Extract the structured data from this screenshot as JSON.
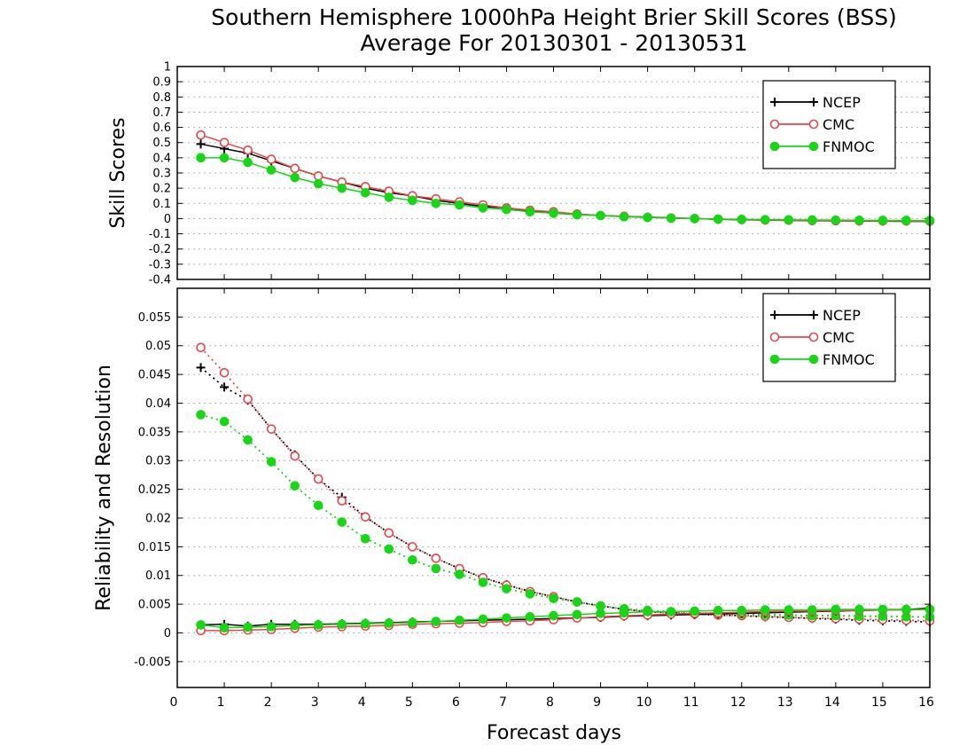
{
  "title_line1": "Southern Hemisphere 1000hPa Height Brier Skill Scores (BSS)",
  "title_line2": "Average For 20130301 - 20130531",
  "xlabel": "Forecast days",
  "colors": {
    "NCEP": "#000000",
    "CMC": "#e8454a",
    "FNMOC": "#16d616",
    "grid": "#b3b3b3"
  },
  "chart_data": [
    {
      "type": "line",
      "ylabel": "Skill Scores",
      "xlim": [
        0,
        16
      ],
      "ylim": [
        -0.4,
        1
      ],
      "xticks": [
        "0",
        "1",
        "2",
        "3",
        "4",
        "5",
        "6",
        "7",
        "8",
        "9",
        "10",
        "11",
        "12",
        "13",
        "14",
        "15",
        "16"
      ],
      "yticks": [
        "-0.4",
        "-0.3",
        "-0.2",
        "-0.1",
        "0",
        "0.1",
        "0.2",
        "0.3",
        "0.4",
        "0.5",
        "0.6",
        "0.7",
        "0.8",
        "0.9",
        "1"
      ],
      "grid": true,
      "legend_position": "top-right",
      "x": [
        0.5,
        1,
        1.5,
        2,
        2.5,
        3,
        3.5,
        4,
        4.5,
        5,
        5.5,
        6,
        6.5,
        7,
        7.5,
        8,
        8.5,
        9,
        9.5,
        10,
        10.5,
        11,
        11.5,
        12,
        12.5,
        13,
        13.5,
        14,
        14.5,
        15,
        15.5,
        16
      ],
      "series": [
        {
          "name": "NCEP",
          "marker": "plus",
          "values": [
            0.49,
            0.46,
            0.43,
            0.38,
            0.33,
            0.28,
            0.24,
            0.2,
            0.17,
            0.15,
            0.12,
            0.1,
            0.08,
            0.07,
            0.05,
            0.04,
            0.03,
            0.02,
            0.015,
            0.01,
            0.005,
            0.0,
            -0.005,
            -0.008,
            -0.01,
            -0.012,
            -0.014,
            -0.015,
            -0.016,
            -0.017,
            -0.018,
            -0.019
          ]
        },
        {
          "name": "CMC",
          "marker": "open-circle",
          "values": [
            0.55,
            0.5,
            0.45,
            0.39,
            0.33,
            0.28,
            0.24,
            0.21,
            0.18,
            0.15,
            0.13,
            0.11,
            0.09,
            0.07,
            0.055,
            0.045,
            0.03,
            0.02,
            0.015,
            0.008,
            0.003,
            0.0,
            -0.004,
            -0.006,
            -0.009,
            -0.011,
            -0.013,
            -0.014,
            -0.015,
            -0.016,
            -0.016,
            -0.017
          ]
        },
        {
          "name": "FNMOC",
          "marker": "filled-circle",
          "values": [
            0.4,
            0.4,
            0.37,
            0.32,
            0.27,
            0.23,
            0.2,
            0.17,
            0.14,
            0.12,
            0.1,
            0.09,
            0.07,
            0.06,
            0.045,
            0.035,
            0.025,
            0.02,
            0.012,
            0.007,
            0.003,
            0.0,
            -0.003,
            -0.005,
            -0.007,
            -0.008,
            -0.009,
            -0.01,
            -0.011,
            -0.012,
            -0.012,
            -0.013
          ]
        }
      ]
    },
    {
      "type": "line",
      "ylabel": "Reliability and Resolution",
      "xlim": [
        0,
        16
      ],
      "ylim": [
        -0.0095,
        0.06
      ],
      "xticks": [
        "0",
        "1",
        "2",
        "3",
        "4",
        "5",
        "6",
        "7",
        "8",
        "9",
        "10",
        "11",
        "12",
        "13",
        "14",
        "15",
        "16"
      ],
      "yticks": [
        "-0.005",
        "0",
        "0.005",
        "0.01",
        "0.015",
        "0.02",
        "0.025",
        "0.03",
        "0.035",
        "0.04",
        "0.045",
        "0.05",
        "0.055"
      ],
      "grid": true,
      "legend_position": "top-right",
      "x": [
        0.5,
        1,
        1.5,
        2,
        2.5,
        3,
        3.5,
        4,
        4.5,
        5,
        5.5,
        6,
        6.5,
        7,
        7.5,
        8,
        8.5,
        9,
        9.5,
        10,
        10.5,
        11,
        11.5,
        12,
        12.5,
        13,
        13.5,
        14,
        14.5,
        15,
        15.5,
        16
      ],
      "series": [
        {
          "name": "NCEP",
          "group": "resolution",
          "style": "dotted",
          "marker": "plus",
          "values": [
            0.0462,
            0.0428,
            0.0405,
            0.0355,
            0.031,
            0.0268,
            0.0236,
            0.0202,
            0.0174,
            0.015,
            0.013,
            0.0112,
            0.0096,
            0.0084,
            0.0072,
            0.0063,
            0.0054,
            0.0047,
            0.0041,
            0.0037,
            0.0035,
            0.0033,
            0.0031,
            0.003,
            0.0028,
            0.0027,
            0.0025,
            0.0024,
            0.0022,
            0.0021,
            0.002,
            0.0019
          ]
        },
        {
          "name": "CMC",
          "group": "resolution",
          "style": "dotted",
          "marker": "open-circle",
          "values": [
            0.0497,
            0.0453,
            0.0407,
            0.0355,
            0.0308,
            0.0268,
            0.023,
            0.0202,
            0.0174,
            0.015,
            0.013,
            0.0112,
            0.0096,
            0.0083,
            0.0072,
            0.0063,
            0.0054,
            0.0047,
            0.0041,
            0.0037,
            0.0035,
            0.0033,
            0.0031,
            0.003,
            0.0029,
            0.0027,
            0.0026,
            0.0025,
            0.0024,
            0.0023,
            0.0022,
            0.0021
          ]
        },
        {
          "name": "FNMOC",
          "group": "resolution",
          "style": "dotted",
          "marker": "filled-circle",
          "values": [
            0.038,
            0.0368,
            0.0336,
            0.0298,
            0.0256,
            0.0222,
            0.0193,
            0.0164,
            0.0146,
            0.0127,
            0.0112,
            0.0102,
            0.0088,
            0.0077,
            0.0068,
            0.006,
            0.0054,
            0.0047,
            0.0042,
            0.0039,
            0.0037,
            0.0035,
            0.0034,
            0.0033,
            0.0032,
            0.0031,
            0.003,
            0.003,
            0.0029,
            0.0029,
            0.0028,
            0.0028
          ]
        },
        {
          "name": "NCEP",
          "group": "reliability",
          "style": "solid",
          "marker": "plus",
          "values": [
            0.0014,
            0.0015,
            0.0012,
            0.0015,
            0.0015,
            0.0015,
            0.0016,
            0.0017,
            0.0018,
            0.0019,
            0.002,
            0.0021,
            0.0022,
            0.0023,
            0.0024,
            0.0025,
            0.0026,
            0.0027,
            0.0029,
            0.003,
            0.0031,
            0.0032,
            0.0033,
            0.0034,
            0.0035,
            0.0036,
            0.0037,
            0.0038,
            0.0039,
            0.004,
            0.0041,
            0.0043
          ]
        },
        {
          "name": "CMC",
          "group": "reliability",
          "style": "solid",
          "marker": "open-circle",
          "values": [
            0.0004,
            0.0004,
            0.0005,
            0.0006,
            0.0008,
            0.001,
            0.0011,
            0.0012,
            0.0013,
            0.0015,
            0.0016,
            0.0017,
            0.0018,
            0.002,
            0.0021,
            0.0023,
            0.0026,
            0.0028,
            0.003,
            0.0031,
            0.0033,
            0.0034,
            0.0035,
            0.0036,
            0.0037,
            0.0038,
            0.0038,
            0.0039,
            0.0039,
            0.004,
            0.004,
            0.0041
          ]
        },
        {
          "name": "FNMOC",
          "group": "reliability",
          "style": "solid",
          "marker": "filled-circle",
          "values": [
            0.0014,
            0.0009,
            0.001,
            0.0011,
            0.0013,
            0.0014,
            0.0015,
            0.0016,
            0.0017,
            0.0018,
            0.002,
            0.0022,
            0.0024,
            0.0026,
            0.0028,
            0.003,
            0.0032,
            0.0034,
            0.0035,
            0.0037,
            0.0037,
            0.0038,
            0.0039,
            0.0039,
            0.004,
            0.004,
            0.004,
            0.0041,
            0.0041,
            0.0041,
            0.0041,
            0.0041
          ]
        }
      ]
    }
  ]
}
